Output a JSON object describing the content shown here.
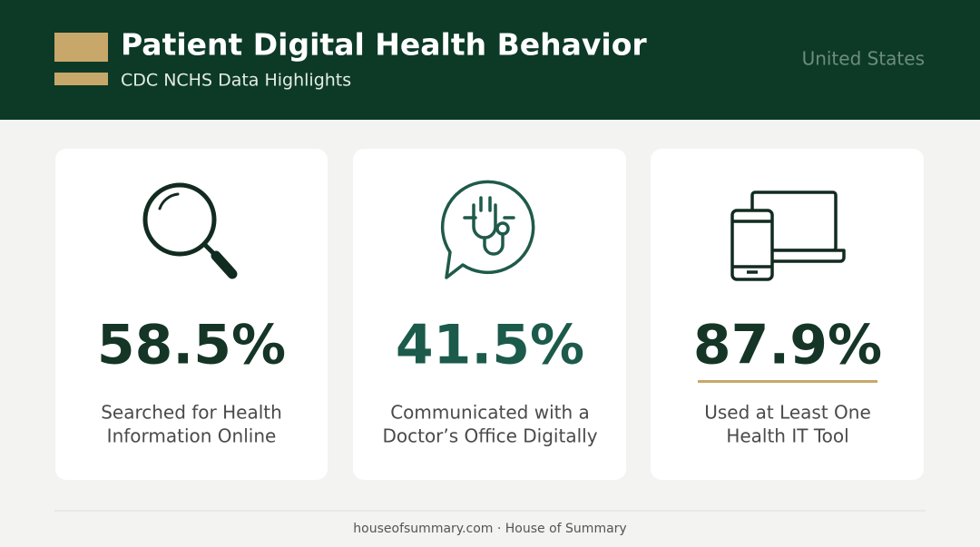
{
  "header": {
    "title": "Patient Digital Health Behavior",
    "subtitle": "CDC NCHS Data Highlights",
    "region": "United States"
  },
  "cards": [
    {
      "value": "58.5%",
      "label_lines": [
        "Searched for Health",
        "Information Online"
      ]
    },
    {
      "value": "41.5%",
      "label_lines": [
        "Communicated with a",
        "Doctor’s Office Digitally"
      ]
    },
    {
      "value": "87.9%",
      "label_lines": [
        "Used at Least One",
        "Health IT Tool"
      ]
    }
  ],
  "footer": "houseofsummary.com · House of Summary"
}
